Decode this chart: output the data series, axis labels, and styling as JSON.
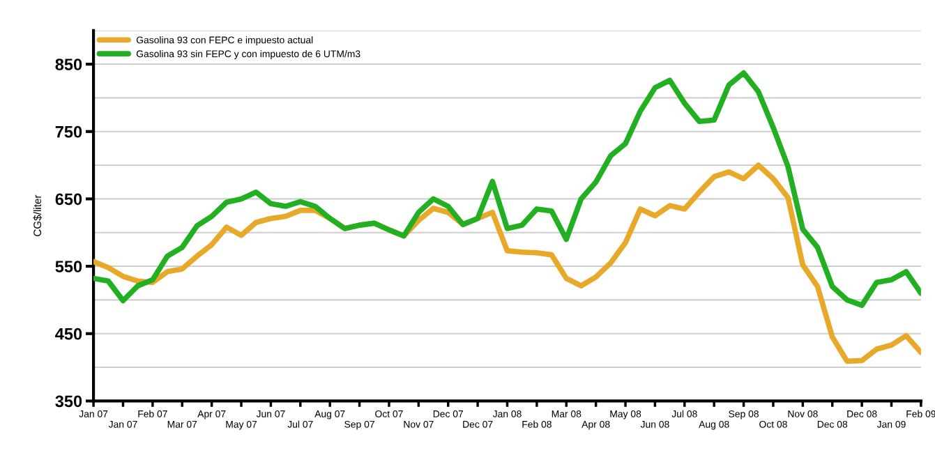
{
  "chart_data": {
    "type": "line",
    "ylabel": "CG$/liter",
    "legend": "top left",
    "grid": "y",
    "marker": "none",
    "line_style": "solid",
    "ylim": [
      350,
      900
    ],
    "yticks": [
      350,
      {
        "value": 400,
        "label": null
      },
      450,
      {
        "value": 500,
        "label": null
      },
      550,
      {
        "value": 600,
        "label": null
      },
      650,
      {
        "value": 700,
        "label": null
      },
      750,
      {
        "value": 800,
        "label": null
      },
      850,
      {
        "value": 900,
        "label": null
      }
    ],
    "categories": [
      "Jan 07",
      null,
      "Jan 07",
      null,
      "Feb 07",
      null,
      "Mar 07",
      null,
      "Apr 07",
      null,
      "May 07",
      null,
      "Jun 07",
      null,
      "Jul 07",
      null,
      "Aug 07",
      null,
      "Sep 07",
      null,
      "Oct 07",
      null,
      "Nov 07",
      null,
      "Dec 07",
      null,
      "Dec 07",
      null,
      "Jan 08",
      null,
      "Feb 08",
      null,
      "Mar 08",
      null,
      "Apr 08",
      null,
      "May 08",
      null,
      "Jun 08",
      null,
      "Jul 08",
      null,
      "Aug 08",
      null,
      "Sep 08",
      null,
      "Oct 08",
      null,
      "Nov 08",
      null,
      "Dec 08",
      null,
      "Dec 08",
      null,
      "Jan 09",
      null,
      "Feb 09"
    ],
    "series": [
      {
        "name": "Gasolina 93 con FEPC e impuesto actual",
        "color": "#e8a82a",
        "values": [
          557,
          548,
          535,
          528,
          526,
          542,
          546,
          565,
          582,
          608,
          596,
          615,
          621,
          624,
          633,
          633,
          621,
          606,
          611,
          614,
          604,
          595,
          618,
          636,
          630,
          612,
          621,
          630,
          573,
          571,
          570,
          567,
          532,
          521,
          534,
          555,
          585,
          635,
          625,
          640,
          635,
          660,
          683,
          690,
          680,
          700,
          680,
          652,
          552,
          520,
          445,
          409,
          410,
          427,
          433,
          447,
          422
        ]
      },
      {
        "name": "Gasolina 93 sin FEPC y con impuesto de 6 UTM/m3",
        "color": "#22b022",
        "values": [
          532,
          528,
          499,
          521,
          530,
          565,
          578,
          610,
          624,
          645,
          650,
          660,
          643,
          639,
          646,
          639,
          621,
          606,
          611,
          614,
          604,
          595,
          630,
          650,
          639,
          612,
          621,
          676,
          606,
          611,
          635,
          632,
          590,
          650,
          675,
          714,
          732,
          780,
          815,
          826,
          792,
          765,
          767,
          819,
          837,
          809,
          756,
          698,
          605,
          578,
          520,
          500,
          492,
          526,
          530,
          542,
          510
        ]
      }
    ]
  }
}
